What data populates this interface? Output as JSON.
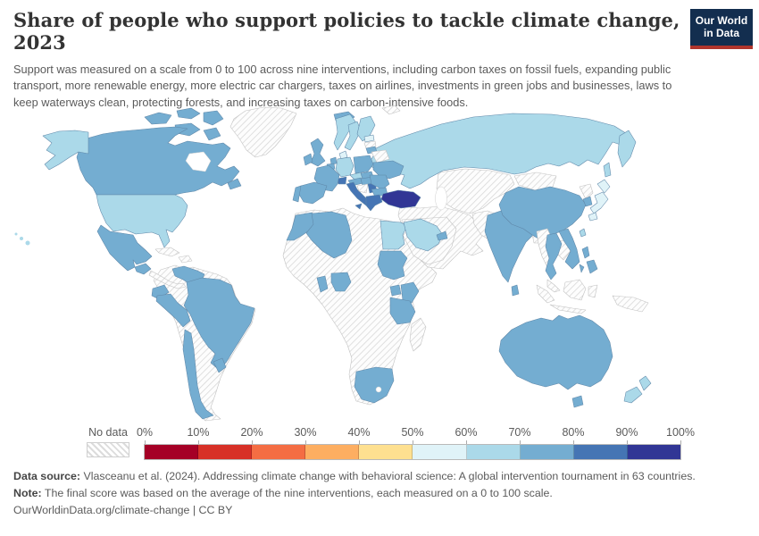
{
  "header": {
    "title": "Share of people who support policies to tackle climate change, 2023",
    "subtitle": "Support was measured on a scale from 0 to 100 across nine interventions, including carbon taxes on fossil fuels, expanding public transport, more renewable energy, more electric car chargers, taxes on airlines, investments in green jobs and businesses, laws to keep waterways clean, protecting forests, and increasing taxes on carbon-intensive foods.",
    "logo": {
      "line1": "Our World",
      "line2": "in Data",
      "bg_color": "#132e4f",
      "accent_color": "#b0352c"
    }
  },
  "legend": {
    "no_data_label": "No data",
    "tick_labels": [
      "0%",
      "10%",
      "20%",
      "30%",
      "40%",
      "50%",
      "60%",
      "70%",
      "80%",
      "90%",
      "100%"
    ],
    "bin_colors": [
      "#a50026",
      "#d73027",
      "#f46d43",
      "#fdae61",
      "#fee090",
      "#e0f3f8",
      "#abd9e9",
      "#74add1",
      "#4575b4",
      "#313695"
    ]
  },
  "map": {
    "fills": {
      "greenland": "nodata",
      "svalbard": "nodata",
      "canada": 7,
      "alaska": 6,
      "usa": 6,
      "hawaii": 6,
      "mexico": 7,
      "guatemala": 7,
      "central-america": "nodata",
      "cuba": "nodata",
      "hispaniola": "nodata",
      "south-america": "nodata",
      "venezuela": 7,
      "ecuador": 7,
      "peru": 7,
      "brazil": 7,
      "chile": 7,
      "uruguay": 7,
      "africa": "nodata",
      "madagascar": "nodata",
      "morocco": 7,
      "algeria": 7,
      "egypt": 6,
      "sudan": 7,
      "ghana": 7,
      "nigeria": 7,
      "uganda": 7,
      "kenya": 7,
      "tanzania": 7,
      "south-africa": 7,
      "iceland": 7,
      "norway": 6,
      "sweden": 6,
      "finland": 6,
      "denmark": 5,
      "estonia": 5,
      "latvia": "nodata",
      "lithuania": 7,
      "belarus": "nodata",
      "uk": 7,
      "ireland": 7,
      "netherlands": 7,
      "belgium": 7,
      "germany": 6,
      "poland": 7,
      "czechia": 6,
      "austria": 7,
      "switzerland": 8,
      "france": 7,
      "spain": 7,
      "portugal": 7,
      "italy": 8,
      "slovakia": 7,
      "hungary": 7,
      "croatia-bosnia": "nodata",
      "serbia": 8,
      "romania": 7,
      "bulgaria": 7,
      "greece": 8,
      "ukraine": 7,
      "russia": 6,
      "turkey": 9,
      "middle-east": "nodata",
      "arabia": "nodata",
      "saudi-arabia": 6,
      "uae": 7,
      "central-asia": "nodata",
      "mongolia": "nodata",
      "afghanistan-pakistan": "nodata",
      "india": 7,
      "sri-lanka": 7,
      "bangladesh": "nodata",
      "china": 7,
      "north-korea": "nodata",
      "south-korea": 7,
      "japan": 5,
      "taiwan": 6,
      "myanmar": "nodata",
      "thailand": 7,
      "laos-cambodia": "nodata",
      "vietnam": 7,
      "malaysia": "nodata",
      "indonesia": "nodata",
      "new-guinea": "nodata",
      "philippines": 7,
      "australia": 7,
      "new-zealand": 6
    }
  },
  "chart_data": {
    "type": "heatmap",
    "title": "Share of people who support policies to tackle climate change, 2023",
    "year": 2023,
    "unit": "%",
    "scale_range": [
      0,
      100
    ],
    "legend_position": "bottom",
    "legend_bins": [
      {
        "range": "0-10%",
        "color": "#a50026"
      },
      {
        "range": "10-20%",
        "color": "#d73027"
      },
      {
        "range": "20-30%",
        "color": "#f46d43"
      },
      {
        "range": "30-40%",
        "color": "#fdae61"
      },
      {
        "range": "40-50%",
        "color": "#fee090"
      },
      {
        "range": "50-60%",
        "color": "#e0f3f8"
      },
      {
        "range": "60-70%",
        "color": "#abd9e9"
      },
      {
        "range": "70-80%",
        "color": "#74add1"
      },
      {
        "range": "80-90%",
        "color": "#4575b4"
      },
      {
        "range": "90-100%",
        "color": "#313695"
      }
    ],
    "no_data_style": "hatched",
    "country_values_binned": {
      "Canada": "70-80",
      "United States": "60-70",
      "Mexico": "70-80",
      "Guatemala": "70-80",
      "Venezuela": "70-80",
      "Ecuador": "70-80",
      "Peru": "70-80",
      "Brazil": "70-80",
      "Chile": "70-80",
      "Uruguay": "70-80",
      "Iceland": "70-80",
      "United Kingdom": "70-80",
      "Ireland": "70-80",
      "France": "70-80",
      "Spain": "70-80",
      "Portugal": "70-80",
      "Germany": "60-70",
      "Denmark": "50-60",
      "Norway": "60-70",
      "Sweden": "60-70",
      "Finland": "60-70",
      "Estonia": "50-60",
      "Lithuania": "70-80",
      "Poland": "70-80",
      "Czechia": "60-70",
      "Austria": "70-80",
      "Switzerland": "80-90",
      "Italy": "80-90",
      "Serbia": "80-90",
      "Romania": "70-80",
      "Bulgaria": "70-80",
      "Hungary": "70-80",
      "Slovakia": "70-80",
      "Greece": "80-90",
      "Ukraine": "70-80",
      "Russia": "60-70",
      "Turkey": "90-100",
      "Morocco": "70-80",
      "Algeria": "70-80",
      "Egypt": "60-70",
      "Sudan": "70-80",
      "Ghana": "70-80",
      "Nigeria": "70-80",
      "Uganda": "70-80",
      "Kenya": "70-80",
      "Tanzania": "70-80",
      "South Africa": "70-80",
      "Saudi Arabia": "60-70",
      "United Arab Emirates": "70-80",
      "India": "70-80",
      "Sri Lanka": "70-80",
      "China": "70-80",
      "South Korea": "70-80",
      "Japan": "50-60",
      "Taiwan": "60-70",
      "Thailand": "70-80",
      "Vietnam": "70-80",
      "Philippines": "70-80",
      "Australia": "70-80",
      "New Zealand": "60-70"
    }
  },
  "footer": {
    "sources_label": "Data source:",
    "sources_text": " Vlasceanu et al. (2024). Addressing climate change with behavioral science: A global intervention tournament in 63 countries.",
    "note_label": "Note:",
    "note_text": " The final score was based on the average of the nine interventions, each measured on a 0 to 100 scale.",
    "url": "OurWorldinData.org/climate-change",
    "separator": " | ",
    "license": "CC BY"
  }
}
